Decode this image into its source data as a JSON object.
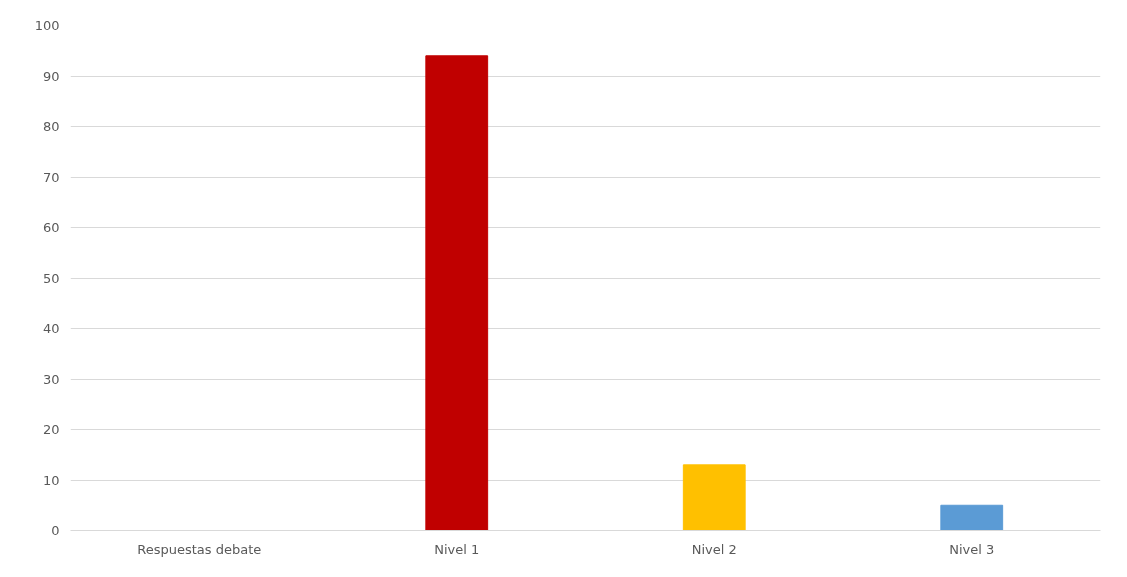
{
  "chart_data": {
    "type": "bar",
    "categories": [
      "Respuestas debate",
      "Nivel 1",
      "Nivel 2",
      "Nivel 3"
    ],
    "values": [
      null,
      94,
      13,
      5
    ],
    "colors": [
      "#c00000",
      "#c00000",
      "#ffc000",
      "#5b9bd5"
    ],
    "ylim": [
      0,
      100
    ],
    "yticks": [
      0,
      10,
      20,
      30,
      40,
      50,
      60,
      70,
      80,
      90,
      100
    ],
    "grid": "y"
  }
}
